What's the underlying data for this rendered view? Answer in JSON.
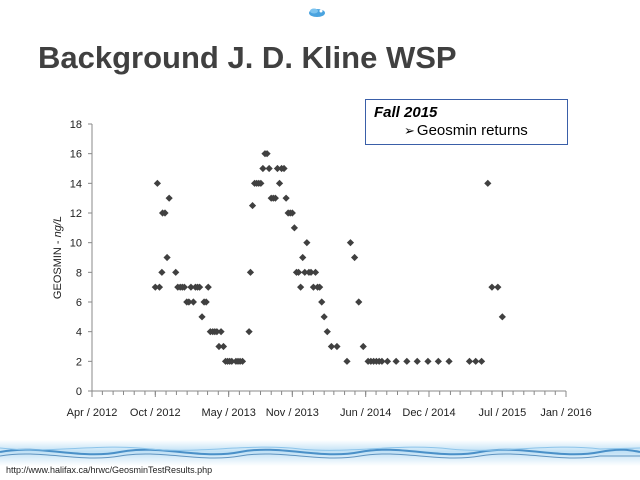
{
  "slide": {
    "title": "Background J. D. Kline WSP",
    "source": "http://www.halifax.ca/hrwc/GeosminTestResults.php"
  },
  "callout": {
    "title": "Fall 2015",
    "line": "Geosmin returns",
    "bullet_icon": "arrow-bullet-icon"
  },
  "colors": {
    "marker": "#404040",
    "title": "#404040",
    "callout_border": "#3a5fa8",
    "wave": "#4a90c8"
  },
  "chart_data": {
    "type": "scatter",
    "title": "",
    "ylabel_prefix": "GEOSMIN - ",
    "ylabel_unit": "ng/L",
    "xlabel": "",
    "ylim": [
      0,
      18
    ],
    "yticks": [
      0,
      2,
      4,
      6,
      8,
      10,
      12,
      14,
      16,
      18
    ],
    "xlim": [
      "2012-04-01",
      "2016-01-01"
    ],
    "xticks": [
      {
        "date": "2012-04-01",
        "label": "Apr / 2012"
      },
      {
        "date": "2012-10-01",
        "label": "Oct / 2012"
      },
      {
        "date": "2013-05-01",
        "label": "May / 2013"
      },
      {
        "date": "2013-11-01",
        "label": "Nov / 2013"
      },
      {
        "date": "2014-06-01",
        "label": "Jun / 2014"
      },
      {
        "date": "2014-12-01",
        "label": "Dec / 2014"
      },
      {
        "date": "2015-07-01",
        "label": "Jul / 2015"
      },
      {
        "date": "2016-01-01",
        "label": "Jan / 2016"
      }
    ],
    "grid": false,
    "marker": "diamond",
    "points": [
      [
        "2012-10-01",
        7
      ],
      [
        "2012-10-07",
        14
      ],
      [
        "2012-10-13",
        7
      ],
      [
        "2012-10-20",
        8
      ],
      [
        "2012-10-22",
        12
      ],
      [
        "2012-10-29",
        12
      ],
      [
        "2012-11-04",
        9
      ],
      [
        "2012-11-10",
        13
      ],
      [
        "2012-11-29",
        8
      ],
      [
        "2012-12-05",
        7
      ],
      [
        "2012-12-12",
        7
      ],
      [
        "2012-12-18",
        7
      ],
      [
        "2012-12-24",
        7
      ],
      [
        "2012-12-31",
        6
      ],
      [
        "2013-01-06",
        6
      ],
      [
        "2013-01-12",
        7
      ],
      [
        "2013-01-19",
        6
      ],
      [
        "2013-01-25",
        7
      ],
      [
        "2013-01-31",
        7
      ],
      [
        "2013-02-06",
        7
      ],
      [
        "2013-02-13",
        5
      ],
      [
        "2013-02-19",
        6
      ],
      [
        "2013-02-25",
        6
      ],
      [
        "2013-03-03",
        7
      ],
      [
        "2013-03-09",
        4
      ],
      [
        "2013-03-16",
        4
      ],
      [
        "2013-03-22",
        4
      ],
      [
        "2013-03-28",
        4
      ],
      [
        "2013-04-03",
        3
      ],
      [
        "2013-04-09",
        4
      ],
      [
        "2013-04-16",
        3
      ],
      [
        "2013-04-22",
        2
      ],
      [
        "2013-04-28",
        2
      ],
      [
        "2013-05-04",
        2
      ],
      [
        "2013-05-10",
        2
      ],
      [
        "2013-05-22",
        2
      ],
      [
        "2013-05-28",
        2
      ],
      [
        "2013-06-03",
        2
      ],
      [
        "2013-06-10",
        2
      ],
      [
        "2013-06-29",
        4
      ],
      [
        "2013-07-03",
        8
      ],
      [
        "2013-07-09",
        12.5
      ],
      [
        "2013-07-15",
        14
      ],
      [
        "2013-07-21",
        14
      ],
      [
        "2013-07-27",
        14
      ],
      [
        "2013-08-02",
        14
      ],
      [
        "2013-08-08",
        15
      ],
      [
        "2013-08-14",
        16
      ],
      [
        "2013-08-20",
        16
      ],
      [
        "2013-08-26",
        15
      ],
      [
        "2013-09-01",
        13
      ],
      [
        "2013-09-07",
        13
      ],
      [
        "2013-09-13",
        13
      ],
      [
        "2013-09-19",
        15
      ],
      [
        "2013-09-25",
        14
      ],
      [
        "2013-10-01",
        15
      ],
      [
        "2013-10-08",
        15
      ],
      [
        "2013-10-14",
        13
      ],
      [
        "2013-10-20",
        12
      ],
      [
        "2013-10-26",
        12
      ],
      [
        "2013-11-01",
        12
      ],
      [
        "2013-11-07",
        11
      ],
      [
        "2013-11-13",
        8
      ],
      [
        "2013-11-19",
        8
      ],
      [
        "2013-11-25",
        7
      ],
      [
        "2013-12-01",
        9
      ],
      [
        "2013-12-07",
        8
      ],
      [
        "2013-12-13",
        10
      ],
      [
        "2013-12-19",
        8
      ],
      [
        "2013-12-25",
        8
      ],
      [
        "2014-01-01",
        7
      ],
      [
        "2014-01-07",
        8
      ],
      [
        "2014-01-13",
        7
      ],
      [
        "2014-01-19",
        7
      ],
      [
        "2014-01-25",
        6
      ],
      [
        "2014-02-01",
        5
      ],
      [
        "2014-02-10",
        4
      ],
      [
        "2014-02-22",
        3
      ],
      [
        "2014-03-10",
        3
      ],
      [
        "2014-04-08",
        2
      ],
      [
        "2014-04-18",
        10
      ],
      [
        "2014-04-30",
        9
      ],
      [
        "2014-05-12",
        6
      ],
      [
        "2014-05-25",
        3
      ],
      [
        "2014-06-08",
        2
      ],
      [
        "2014-06-16",
        2
      ],
      [
        "2014-06-24",
        2
      ],
      [
        "2014-07-02",
        2
      ],
      [
        "2014-07-10",
        2
      ],
      [
        "2014-07-18",
        2
      ],
      [
        "2014-08-03",
        2
      ],
      [
        "2014-08-28",
        2
      ],
      [
        "2014-09-28",
        2
      ],
      [
        "2014-10-28",
        2
      ],
      [
        "2014-11-28",
        2
      ],
      [
        "2014-12-28",
        2
      ],
      [
        "2015-01-28",
        2
      ],
      [
        "2015-03-28",
        2
      ],
      [
        "2015-04-15",
        2
      ],
      [
        "2015-05-02",
        2
      ],
      [
        "2015-05-20",
        14
      ],
      [
        "2015-06-01",
        7
      ],
      [
        "2015-06-18",
        7
      ],
      [
        "2015-07-01",
        5
      ]
    ]
  }
}
